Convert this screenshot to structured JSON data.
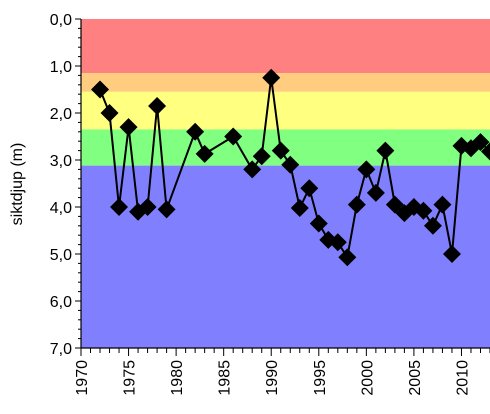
{
  "chart_data": {
    "type": "line",
    "title": "",
    "xlabel": "",
    "ylabel": "siktdjup (m)",
    "xlim": [
      1970,
      2013
    ],
    "ylim": [
      7.0,
      0.0
    ],
    "y_inverted": true,
    "x_ticks": [
      1970,
      1975,
      1980,
      1985,
      1990,
      1995,
      2000,
      2005,
      2010
    ],
    "x_tick_labels": [
      "1970",
      "1975",
      "1980",
      "1985",
      "1990",
      "1995",
      "2000",
      "2005",
      "2010"
    ],
    "y_ticks": [
      0,
      1,
      2,
      3,
      4,
      5,
      6,
      7
    ],
    "y_tick_labels": [
      "0,0",
      "1,0",
      "2,0",
      "3,0",
      "4,0",
      "5,0",
      "6,0",
      "7,0"
    ],
    "grid": false,
    "legend": "none",
    "bands": [
      {
        "from": 0.0,
        "to": 1.15,
        "color": "#ff8080"
      },
      {
        "from": 1.15,
        "to": 1.55,
        "color": "#ffcc80"
      },
      {
        "from": 1.55,
        "to": 2.35,
        "color": "#ffff80"
      },
      {
        "from": 2.35,
        "to": 3.12,
        "color": "#80ff80"
      },
      {
        "from": 3.12,
        "to": 7.0,
        "color": "#8080ff"
      }
    ],
    "series": [
      {
        "marker": "diamond",
        "color": "#000000",
        "points": [
          [
            1972,
            1.5
          ],
          [
            1973,
            2.0
          ],
          [
            1974,
            4.0
          ],
          [
            1975,
            2.3
          ],
          [
            1976,
            4.1
          ],
          [
            1977,
            4.0
          ],
          [
            1978,
            1.85
          ],
          [
            1979,
            4.05
          ],
          [
            1982,
            2.4
          ],
          [
            1983,
            2.87
          ],
          [
            1986,
            2.5
          ],
          [
            1988,
            3.2
          ],
          [
            1989,
            2.92
          ],
          [
            1990,
            1.25
          ],
          [
            1991,
            2.8
          ],
          [
            1992,
            3.1
          ],
          [
            1993,
            4.02
          ],
          [
            1994,
            3.6
          ],
          [
            1995,
            4.35
          ],
          [
            1996,
            4.7
          ],
          [
            1997,
            4.75
          ],
          [
            1998,
            5.07
          ],
          [
            1999,
            3.95
          ],
          [
            2000,
            3.2
          ],
          [
            2001,
            3.7
          ],
          [
            2002,
            2.8
          ],
          [
            2003,
            3.95
          ],
          [
            2004,
            4.13
          ],
          [
            2005,
            4.0
          ],
          [
            2006,
            4.08
          ],
          [
            2007,
            4.4
          ],
          [
            2008,
            3.95
          ],
          [
            2009,
            5.0
          ],
          [
            2010,
            2.7
          ],
          [
            2011,
            2.75
          ],
          [
            2012,
            2.62
          ],
          [
            2013,
            2.82
          ]
        ]
      }
    ]
  }
}
